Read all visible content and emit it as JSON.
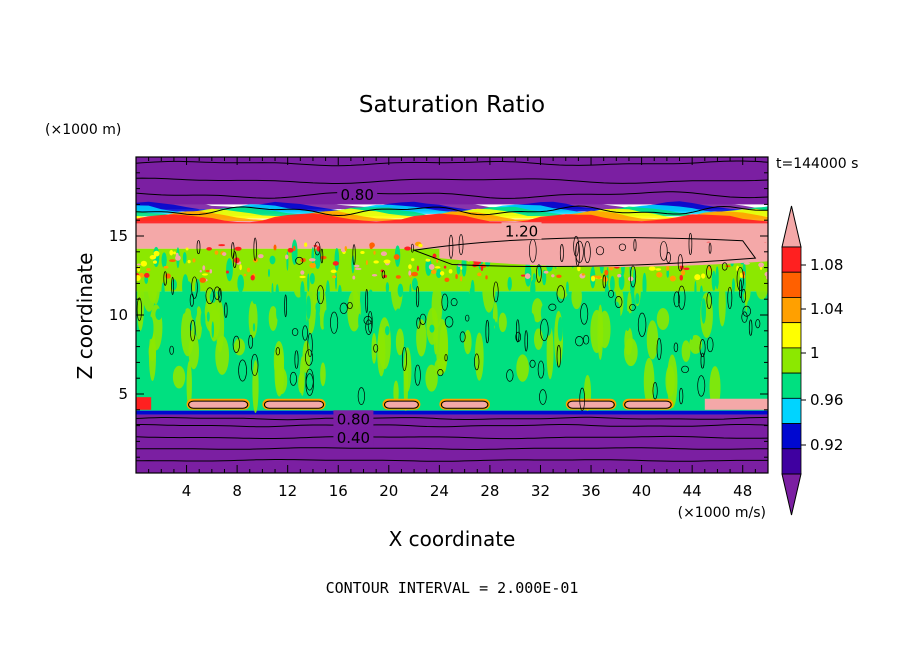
{
  "chart_data": {
    "type": "heatmap",
    "title": "Saturation Ratio",
    "xlabel": "X coordinate",
    "ylabel": "Z coordinate",
    "x_unit": "(×1000 m/s)",
    "y_unit": "(×1000 m)",
    "time_label": "t=144000 s",
    "footer": "CONTOUR INTERVAL = 2.000E-01",
    "xlim": [
      0,
      50
    ],
    "ylim": [
      0,
      20
    ],
    "x_ticks": [
      4,
      8,
      12,
      16,
      20,
      24,
      28,
      32,
      36,
      40,
      44,
      48
    ],
    "y_ticks": [
      5,
      10,
      15
    ],
    "colorbar": {
      "levels": [
        0.92,
        0.96,
        1,
        1.04,
        1.08
      ],
      "colors": [
        "#7b1fa2",
        "#3f00a0",
        "#0008d0",
        "#00d4ff",
        "#00e080",
        "#8ce800",
        "#ffff00",
        "#ffa000",
        "#ff6000",
        "#ff2020",
        "#f4a8a8"
      ]
    },
    "contour_labels": [
      {
        "text": "0.80",
        "x": 17.5,
        "y": 17.6
      },
      {
        "text": "1.20",
        "x": 30.5,
        "y": 15.3
      },
      {
        "text": "0.80",
        "x": 17.2,
        "y": 3.4
      },
      {
        "text": "0.40",
        "x": 17.2,
        "y": 2.2
      }
    ],
    "field_bands": [
      {
        "z": [
          0,
          3.7
        ],
        "value": "<0.92"
      },
      {
        "z": [
          3.7,
          3.9
        ],
        "value": "0.92-0.96"
      },
      {
        "z": [
          3.9,
          11
        ],
        "value": "0.96-1.04"
      },
      {
        "z": [
          11,
          14.2
        ],
        "value": "1.00-1.10"
      },
      {
        "z": [
          14.2,
          16
        ],
        "value": ">1.10"
      },
      {
        "z": [
          16,
          17
        ],
        "value": "transition"
      },
      {
        "z": [
          17,
          20
        ],
        "value": "<0.92"
      }
    ],
    "surface_patches": [
      {
        "x": [
          4,
          9
        ],
        "value": ">1.10"
      },
      {
        "x": [
          10,
          15
        ],
        "value": ">1.10"
      },
      {
        "x": [
          19.5,
          22.5
        ],
        "value": ">1.10"
      },
      {
        "x": [
          24,
          28
        ],
        "value": ">1.10"
      },
      {
        "x": [
          34,
          38
        ],
        "value": ">1.10"
      },
      {
        "x": [
          38.5,
          42.5
        ],
        "value": ">1.10"
      }
    ]
  }
}
